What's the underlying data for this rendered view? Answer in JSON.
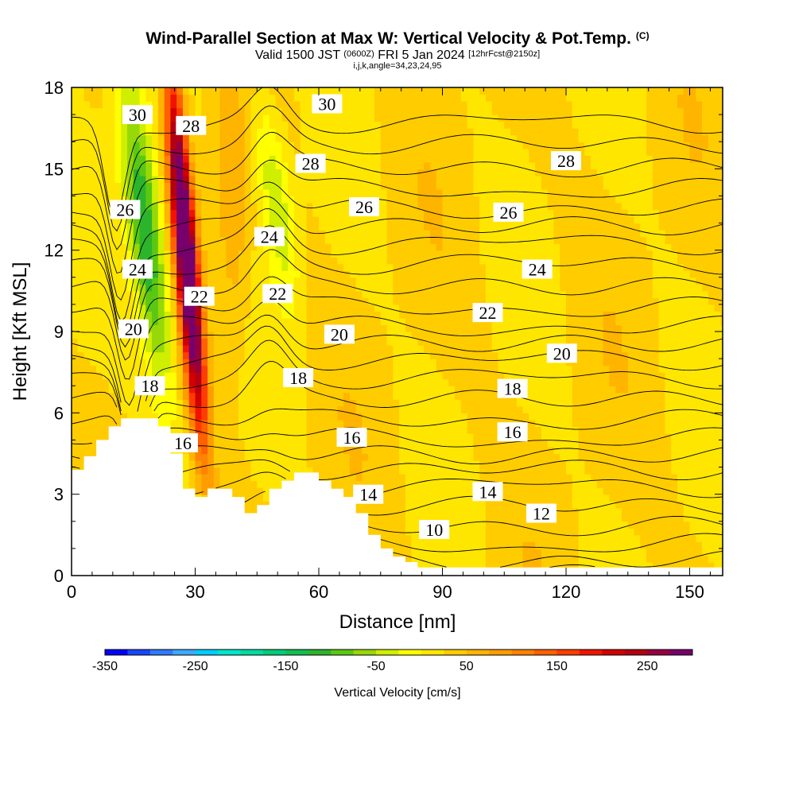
{
  "header": {
    "title": "Wind-Parallel Section at Max W: Vertical Velocity & Pot.Temp.",
    "copyright": "(C)",
    "valid_prefix": "Valid 1500 JST",
    "valid_utc": "(0600Z)",
    "valid_date": "FRI 5 Jan 2024",
    "forecast_info": "[12hrFcst@2150z]",
    "indices": "i,j,k,angle=34,23,24,95"
  },
  "chart_data": {
    "type": "heatmap",
    "title": "Wind-Parallel Section at Max W: Vertical Velocity & Pot.Temp.",
    "xlabel": "Distance [nm]",
    "ylabel": "Height [Kft MSL]",
    "xlim": [
      0,
      158
    ],
    "ylim": [
      0,
      18
    ],
    "x_ticks": [
      0,
      30,
      60,
      90,
      120,
      150
    ],
    "y_ticks": [
      0,
      3,
      6,
      9,
      12,
      15,
      18
    ],
    "colorbar": {
      "label": "Vertical Velocity [cm/s]",
      "min": -350,
      "max": 300,
      "step": 25,
      "tick_values": [
        -350,
        -250,
        -150,
        -50,
        50,
        150,
        250
      ],
      "tick_labels": [
        "-350",
        "-250",
        "-150",
        "-50",
        "50",
        "150",
        "250"
      ],
      "colors": [
        "#0000ff",
        "#1846ff",
        "#2f7bff",
        "#3fa8ff",
        "#00ccff",
        "#00e6cc",
        "#00dca0",
        "#00cc78",
        "#10be50",
        "#2cb42c",
        "#5ac812",
        "#96d808",
        "#d0ee00",
        "#ffff00",
        "#ffe600",
        "#ffcc00",
        "#ffb400",
        "#ff9c00",
        "#ff8200",
        "#ff6000",
        "#ff3c00",
        "#f01400",
        "#d20000",
        "#b40014",
        "#960040",
        "#78006c"
      ]
    },
    "terrain_kft": [
      [
        0,
        3.9
      ],
      [
        3,
        4.4
      ],
      [
        6,
        5.0
      ],
      [
        9,
        5.5
      ],
      [
        12,
        5.8
      ],
      [
        15,
        5.8
      ],
      [
        18,
        5.8
      ],
      [
        21,
        5.5
      ],
      [
        24,
        4.5
      ],
      [
        27,
        3.2
      ],
      [
        30,
        2.9
      ],
      [
        33,
        3.2
      ],
      [
        36,
        3.2
      ],
      [
        39,
        2.9
      ],
      [
        42,
        2.3
      ],
      [
        45,
        2.6
      ],
      [
        48,
        3.2
      ],
      [
        51,
        3.5
      ],
      [
        54,
        3.8
      ],
      [
        57,
        3.8
      ],
      [
        60,
        3.5
      ],
      [
        63,
        3.2
      ],
      [
        66,
        2.9
      ],
      [
        69,
        2.3
      ],
      [
        72,
        1.5
      ],
      [
        75,
        1.0
      ],
      [
        78,
        0.7
      ],
      [
        81,
        0.5
      ],
      [
        84,
        0.3
      ],
      [
        87,
        0.3
      ],
      [
        158,
        0.3
      ]
    ],
    "w_features": [
      {
        "x": 27,
        "y": 9,
        "w": 350,
        "kind": "updraft core"
      },
      {
        "x": 17,
        "y": 12,
        "w": -170,
        "kind": "downdraft band"
      },
      {
        "x": 49,
        "y": 13,
        "w": -80,
        "kind": "downdraft band"
      },
      {
        "x": 40,
        "y": 12,
        "w": 45,
        "kind": "weak updraft"
      }
    ],
    "isentrope_labels": [
      {
        "text": "30",
        "x": 16,
        "y": 17.0
      },
      {
        "text": "28",
        "x": 29,
        "y": 16.6
      },
      {
        "text": "30",
        "x": 62,
        "y": 17.4
      },
      {
        "text": "28",
        "x": 58,
        "y": 15.2
      },
      {
        "text": "28",
        "x": 120,
        "y": 15.3
      },
      {
        "text": "26",
        "x": 13,
        "y": 13.5
      },
      {
        "text": "26",
        "x": 71,
        "y": 13.6
      },
      {
        "text": "26",
        "x": 106,
        "y": 13.4
      },
      {
        "text": "24",
        "x": 16,
        "y": 11.3
      },
      {
        "text": "24",
        "x": 48,
        "y": 12.5
      },
      {
        "text": "24",
        "x": 113,
        "y": 11.3
      },
      {
        "text": "22",
        "x": 31,
        "y": 10.3
      },
      {
        "text": "22",
        "x": 50,
        "y": 10.4
      },
      {
        "text": "22",
        "x": 101,
        "y": 9.7
      },
      {
        "text": "20",
        "x": 15,
        "y": 9.1
      },
      {
        "text": "20",
        "x": 65,
        "y": 8.9
      },
      {
        "text": "20",
        "x": 119,
        "y": 8.2
      },
      {
        "text": "18",
        "x": 19,
        "y": 7.0
      },
      {
        "text": "18",
        "x": 55,
        "y": 7.3
      },
      {
        "text": "18",
        "x": 107,
        "y": 6.9
      },
      {
        "text": "16",
        "x": 27,
        "y": 4.9
      },
      {
        "text": "16",
        "x": 68,
        "y": 5.1
      },
      {
        "text": "16",
        "x": 107,
        "y": 5.3
      },
      {
        "text": "14",
        "x": 72,
        "y": 3.0
      },
      {
        "text": "14",
        "x": 101,
        "y": 3.1
      },
      {
        "text": "12",
        "x": 114,
        "y": 2.3
      },
      {
        "text": "10",
        "x": 88,
        "y": 1.7
      }
    ]
  }
}
